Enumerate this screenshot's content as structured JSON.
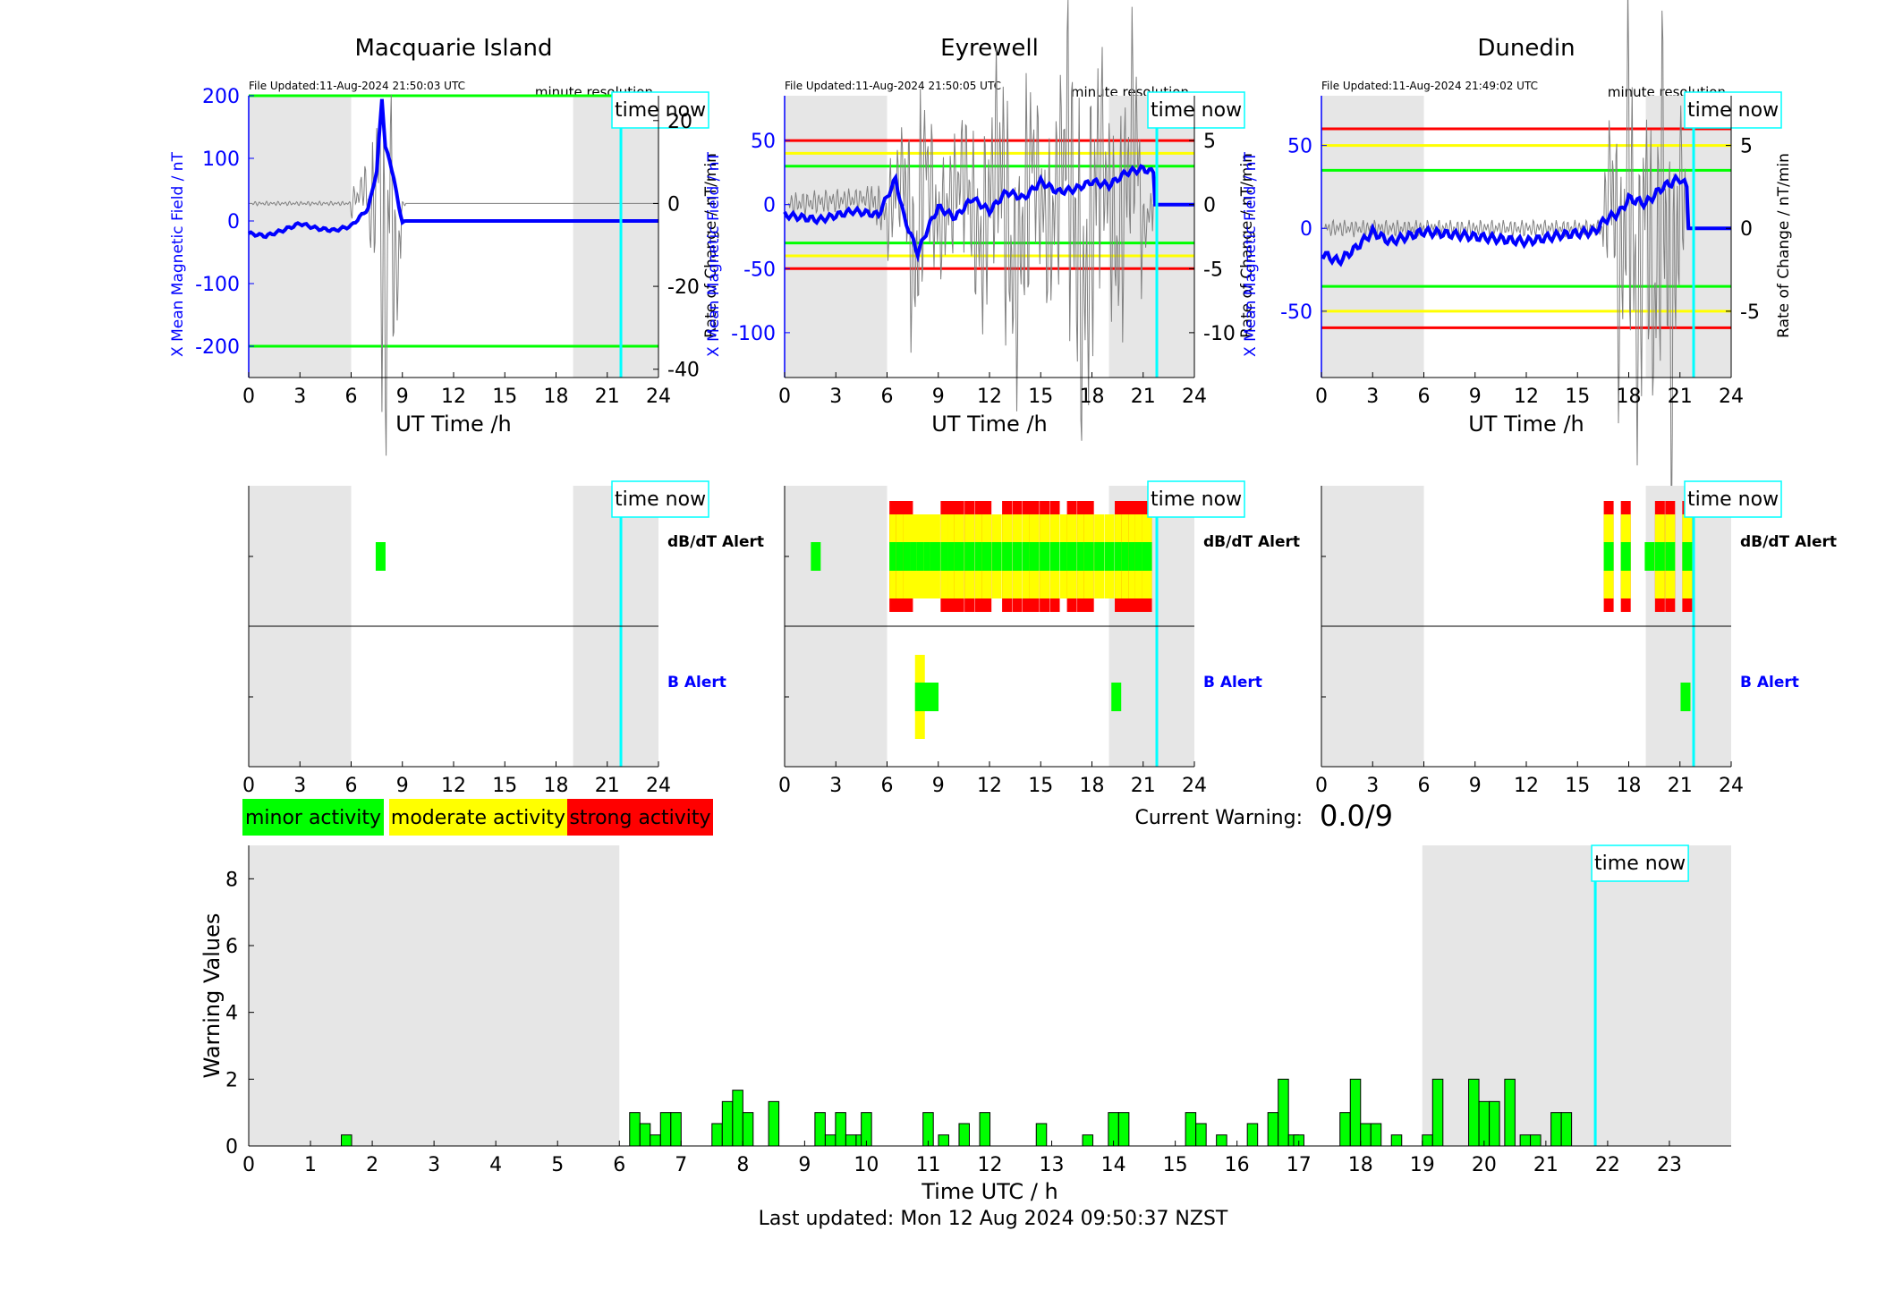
{
  "time_now_label": "time now",
  "time_now_hour": 21.8,
  "footer": "Last updated: Mon 12 Aug 2024 09:50:37 NZST",
  "legend": [
    {
      "label": "minor activity",
      "color": "#00ff00"
    },
    {
      "label": "moderate activity",
      "color": "#ffff00"
    },
    {
      "label": "strong activity",
      "color": "#ff0000"
    }
  ],
  "current_warning": {
    "label": "Current Warning:",
    "value": "0.0/9"
  },
  "colors": {
    "field_line": "#0000ff",
    "rate_line": "#808080",
    "shade": "#e6e6e6",
    "time_now": "#00ffff",
    "green": "#00ff00",
    "yellow": "#ffff00",
    "red": "#ff0000"
  },
  "common": {
    "xlabel": "UT Time /h",
    "xticks": [
      0,
      3,
      6,
      9,
      12,
      15,
      18,
      21,
      24
    ],
    "minute_resolution": "minute resolution",
    "shade_ranges": [
      [
        0,
        6
      ],
      [
        19,
        24
      ]
    ],
    "ylabel_left": "X Mean Magnetic Field / nT",
    "ylabel_right": "Rate of Change / nT/min",
    "dbdt_label": "dB/dT Alert",
    "b_label": "B Alert"
  },
  "stations": [
    {
      "name": "Macquarie Island",
      "file_updated": "File Updated:11-Aug-2024 21:50:03 UTC",
      "ylim_left": [
        -250,
        200
      ],
      "yticks_left": [
        -200,
        -100,
        0,
        100,
        200
      ],
      "ylim_right": [
        -42,
        26
      ],
      "yticks_right": [
        -40,
        -20,
        0,
        20
      ],
      "hlines": [
        {
          "y": 200,
          "color": "green"
        },
        {
          "y": -200,
          "color": "green"
        }
      ],
      "field_series": [
        [
          0,
          -20
        ],
        [
          1,
          -24
        ],
        [
          2,
          -15
        ],
        [
          3,
          -4
        ],
        [
          4,
          -12
        ],
        [
          5,
          -15
        ],
        [
          6,
          -8
        ],
        [
          7,
          20
        ],
        [
          7.5,
          80
        ],
        [
          7.8,
          195
        ],
        [
          8.0,
          120
        ],
        [
          8.5,
          70
        ],
        [
          8.8,
          20
        ],
        [
          9.0,
          0
        ],
        [
          24,
          0
        ]
      ],
      "rate_series": [
        [
          0,
          0
        ],
        [
          6,
          0
        ],
        [
          6.8,
          4
        ],
        [
          7.2,
          -6
        ],
        [
          7.6,
          14
        ],
        [
          8.0,
          -36
        ],
        [
          8.3,
          12
        ],
        [
          8.6,
          -22
        ],
        [
          9.0,
          0
        ],
        [
          24,
          0
        ]
      ],
      "rate_data_end": 9.2,
      "dbdt_alerts": [
        {
          "h": 7.7,
          "level": 1
        }
      ],
      "b_alerts": []
    },
    {
      "name": "Eyrewell",
      "file_updated": "File Updated:11-Aug-2024 21:50:05 UTC",
      "ylim_left": [
        -135,
        85
      ],
      "yticks_left": [
        -100,
        -50,
        0,
        50
      ],
      "ylim_right": [
        -13.5,
        8.5
      ],
      "yticks_right": [
        -10,
        -5,
        0,
        5
      ],
      "hlines": [
        {
          "y": 50,
          "color": "red"
        },
        {
          "y": 40,
          "color": "yellow"
        },
        {
          "y": 30,
          "color": "green"
        },
        {
          "y": -30,
          "color": "green"
        },
        {
          "y": -40,
          "color": "yellow"
        },
        {
          "y": -50,
          "color": "red"
        }
      ],
      "field_series": [
        [
          0,
          -8
        ],
        [
          2,
          -12
        ],
        [
          4,
          -5
        ],
        [
          5.5,
          -8
        ],
        [
          6.5,
          20
        ],
        [
          7,
          -10
        ],
        [
          7.8,
          -38
        ],
        [
          8.4,
          -18
        ],
        [
          9,
          -2
        ],
        [
          10,
          -10
        ],
        [
          11,
          5
        ],
        [
          12,
          -5
        ],
        [
          13,
          10
        ],
        [
          14,
          5
        ],
        [
          15,
          18
        ],
        [
          16,
          10
        ],
        [
          17,
          12
        ],
        [
          18,
          18
        ],
        [
          19,
          15
        ],
        [
          20,
          25
        ],
        [
          21,
          28
        ],
        [
          21.6,
          25
        ],
        [
          21.7,
          0
        ],
        [
          24,
          0
        ]
      ],
      "rate_series": [
        [
          0,
          0
        ],
        [
          5,
          0.5
        ],
        [
          6,
          -1
        ],
        [
          7,
          3
        ],
        [
          7.6,
          -6
        ],
        [
          8.2,
          4
        ],
        [
          9,
          -2
        ],
        [
          10.5,
          3
        ],
        [
          11.5,
          -4
        ],
        [
          12.5,
          5
        ],
        [
          13.5,
          -7
        ],
        [
          14.5,
          4
        ],
        [
          15.5,
          -3
        ],
        [
          16.5,
          6
        ],
        [
          17.5,
          -9
        ],
        [
          18.5,
          5
        ],
        [
          19.5,
          -4
        ],
        [
          20.5,
          7
        ],
        [
          21,
          -2
        ],
        [
          21.6,
          0
        ],
        [
          24,
          0
        ]
      ],
      "rate_data_end": 21.6,
      "dbdt_alerts": [
        {
          "h": 1.8,
          "level": 1
        },
        {
          "h": 6.4,
          "level": 3
        },
        {
          "h": 6.8,
          "level": 3
        },
        {
          "h": 7.2,
          "level": 3
        },
        {
          "h": 7.6,
          "level": 2
        },
        {
          "h": 8.0,
          "level": 2
        },
        {
          "h": 8.4,
          "level": 2
        },
        {
          "h": 8.8,
          "level": 2
        },
        {
          "h": 9.4,
          "level": 3
        },
        {
          "h": 9.8,
          "level": 3
        },
        {
          "h": 10.2,
          "level": 3
        },
        {
          "h": 10.8,
          "level": 3
        },
        {
          "h": 11.4,
          "level": 3
        },
        {
          "h": 11.8,
          "level": 3
        },
        {
          "h": 12.4,
          "level": 2
        },
        {
          "h": 13.0,
          "level": 3
        },
        {
          "h": 13.6,
          "level": 3
        },
        {
          "h": 14.2,
          "level": 3
        },
        {
          "h": 14.6,
          "level": 3
        },
        {
          "h": 15.2,
          "level": 3
        },
        {
          "h": 15.8,
          "level": 3
        },
        {
          "h": 16.4,
          "level": 2
        },
        {
          "h": 16.8,
          "level": 3
        },
        {
          "h": 17.4,
          "level": 3
        },
        {
          "h": 17.8,
          "level": 3
        },
        {
          "h": 18.4,
          "level": 2
        },
        {
          "h": 19.0,
          "level": 2
        },
        {
          "h": 19.6,
          "level": 3
        },
        {
          "h": 20.0,
          "level": 3
        },
        {
          "h": 20.4,
          "level": 3
        },
        {
          "h": 20.8,
          "level": 3
        },
        {
          "h": 21.2,
          "level": 3
        }
      ],
      "b_alerts": [
        {
          "h": 7.9,
          "level": 2
        },
        {
          "h": 8.3,
          "level": 1
        },
        {
          "h": 8.7,
          "level": 1
        },
        {
          "h": 19.4,
          "level": 1
        }
      ]
    },
    {
      "name": "Dunedin",
      "file_updated": "File Updated:11-Aug-2024 21:49:02 UTC",
      "ylim_left": [
        -90,
        80
      ],
      "yticks_left": [
        -50,
        0,
        50
      ],
      "ylim_right": [
        -9,
        8
      ],
      "yticks_right": [
        -5,
        0,
        5
      ],
      "hlines": [
        {
          "y": 60,
          "color": "red"
        },
        {
          "y": 50,
          "color": "yellow"
        },
        {
          "y": 35,
          "color": "green"
        },
        {
          "y": -35,
          "color": "green"
        },
        {
          "y": -50,
          "color": "yellow"
        },
        {
          "y": -60,
          "color": "red"
        }
      ],
      "field_series": [
        [
          0,
          -15
        ],
        [
          1,
          -20
        ],
        [
          2,
          -12
        ],
        [
          3,
          -2
        ],
        [
          4,
          -8
        ],
        [
          5,
          -5
        ],
        [
          6,
          -2
        ],
        [
          9,
          -5
        ],
        [
          12,
          -8
        ],
        [
          14,
          -4
        ],
        [
          16,
          -2
        ],
        [
          16.6,
          5
        ],
        [
          17.5,
          10
        ],
        [
          18,
          18
        ],
        [
          19,
          15
        ],
        [
          20,
          25
        ],
        [
          21,
          30
        ],
        [
          21.4,
          25
        ],
        [
          21.5,
          0
        ],
        [
          24,
          0
        ]
      ],
      "rate_series": [
        [
          0,
          0
        ],
        [
          6,
          0
        ],
        [
          16.5,
          0
        ],
        [
          17,
          4
        ],
        [
          17.5,
          -5
        ],
        [
          18,
          6
        ],
        [
          18.5,
          -7
        ],
        [
          19,
          3
        ],
        [
          19.5,
          -6
        ],
        [
          20,
          5
        ],
        [
          20.5,
          -8
        ],
        [
          21,
          4
        ],
        [
          21.4,
          0
        ],
        [
          24,
          0
        ]
      ],
      "rate_data_end": 21.4,
      "dbdt_alerts": [
        {
          "h": 16.8,
          "level": 3
        },
        {
          "h": 17.8,
          "level": 3
        },
        {
          "h": 19.2,
          "level": 1
        },
        {
          "h": 19.8,
          "level": 3
        },
        {
          "h": 20.4,
          "level": 3
        },
        {
          "h": 21.4,
          "level": 3
        }
      ],
      "b_alerts": [
        {
          "h": 21.3,
          "level": 1
        }
      ]
    }
  ],
  "chart_data": [
    {
      "type": "line",
      "title": "Macquarie Island",
      "xlabel": "UT Time /h",
      "ylabel": "X Mean Magnetic Field / nT",
      "y2label": "Rate of Change / nT/min",
      "xlim": [
        0,
        24
      ],
      "ylim": [
        -250,
        200
      ],
      "y2lim": [
        -42,
        26
      ]
    },
    {
      "type": "line",
      "title": "Eyrewell",
      "xlabel": "UT Time /h",
      "ylabel": "X Mean Magnetic Field / nT",
      "y2label": "Rate of Change / nT/min",
      "xlim": [
        0,
        24
      ],
      "ylim": [
        -135,
        85
      ],
      "y2lim": [
        -13.5,
        8.5
      ]
    },
    {
      "type": "line",
      "title": "Dunedin",
      "xlabel": "UT Time /h",
      "ylabel": "X Mean Magnetic Field / nT",
      "y2label": "Rate of Change / nT/min",
      "xlim": [
        0,
        24
      ],
      "ylim": [
        -90,
        80
      ],
      "y2lim": [
        -9,
        8
      ]
    },
    {
      "type": "bar",
      "xlabel": "Time UTC / h",
      "ylabel": "Warning Values",
      "xlim": [
        0,
        24
      ],
      "ylim": [
        0,
        9
      ],
      "xticks": [
        0,
        1,
        2,
        3,
        4,
        5,
        6,
        7,
        8,
        9,
        10,
        11,
        12,
        13,
        14,
        15,
        16,
        17,
        18,
        19,
        20,
        21,
        22,
        23
      ],
      "yticks": [
        0,
        2,
        4,
        6,
        8
      ],
      "shade_ranges": [
        [
          0,
          6
        ],
        [
          19,
          24
        ]
      ],
      "x": [
        1.583,
        6.25,
        6.417,
        6.583,
        6.75,
        6.917,
        7.583,
        7.75,
        7.917,
        8.083,
        8.5,
        9.25,
        9.417,
        9.583,
        9.75,
        9.917,
        10.0,
        11.0,
        11.25,
        11.583,
        11.917,
        12.833,
        13.583,
        14.0,
        14.167,
        15.25,
        15.417,
        15.75,
        16.25,
        16.583,
        16.75,
        16.917,
        17.0,
        17.75,
        17.917,
        18.083,
        18.25,
        18.583,
        19.083,
        19.25,
        19.833,
        20.0,
        20.167,
        20.417,
        20.667,
        20.833,
        21.167,
        21.333
      ],
      "values": [
        0.33,
        1,
        0.67,
        0.33,
        1,
        1,
        0.67,
        1.33,
        1.67,
        1,
        1.33,
        1,
        0.33,
        1,
        0.33,
        0.33,
        1,
        1,
        0.33,
        0.67,
        1,
        0.67,
        0.33,
        1,
        1,
        1,
        0.67,
        0.33,
        0.67,
        1,
        2,
        0.33,
        0.33,
        1,
        2,
        0.67,
        0.67,
        0.33,
        0.33,
        2,
        2,
        1.33,
        1.33,
        2,
        0.33,
        0.33,
        1,
        1
      ]
    }
  ]
}
